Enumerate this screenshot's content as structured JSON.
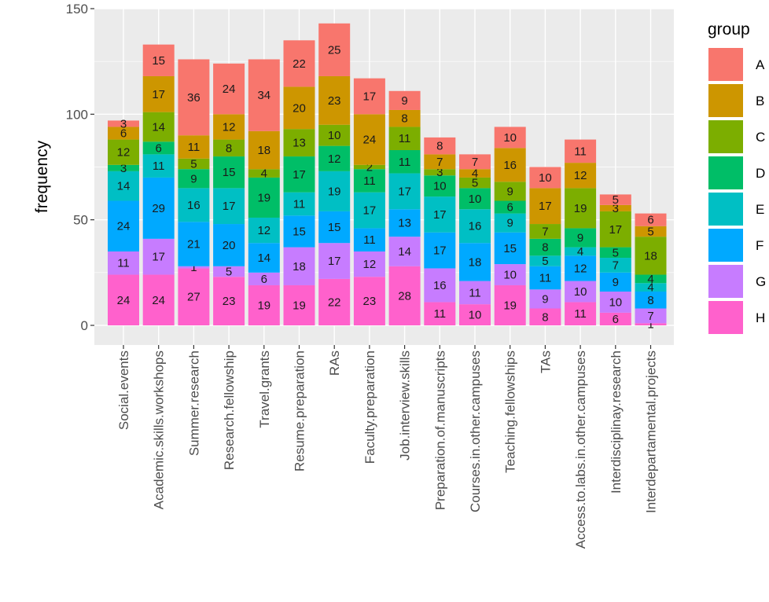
{
  "chart_data": {
    "type": "bar",
    "stacked": true,
    "title": "",
    "xlabel": "",
    "ylabel": "frequency",
    "ylim": [
      0,
      150
    ],
    "yticks": [
      0,
      50,
      100,
      150
    ],
    "grid": true,
    "legend_title": "group",
    "legend_position": "right",
    "categories": [
      "Social.events",
      "Academic.skills.workshops",
      "Summer.research",
      "Research.fellowship",
      "Travel.grants",
      "Resume.preparation",
      "RAs",
      "Faculty.preparation",
      "Job.interview.skills",
      "Preparation.of.manuscripts",
      "Courses.in.other.campuses",
      "Teaching.fellowships",
      "TAs",
      "Access.to.labs.in.other.campuses",
      "Interdisciplinay.research",
      "Interdepartamental.projects"
    ],
    "series": [
      {
        "name": "A",
        "color": "#F8766D",
        "values": [
          3,
          15,
          36,
          24,
          34,
          22,
          25,
          17,
          9,
          8,
          7,
          10,
          10,
          11,
          5,
          6
        ]
      },
      {
        "name": "B",
        "color": "#CD9600",
        "values": [
          6,
          17,
          11,
          12,
          18,
          20,
          23,
          24,
          8,
          7,
          4,
          16,
          17,
          12,
          3,
          5
        ]
      },
      {
        "name": "C",
        "color": "#7CAE00",
        "values": [
          12,
          14,
          5,
          8,
          4,
          13,
          10,
          2,
          11,
          3,
          5,
          9,
          7,
          19,
          17,
          18
        ]
      },
      {
        "name": "D",
        "color": "#00BE67",
        "values": [
          3,
          6,
          9,
          15,
          19,
          17,
          12,
          11,
          11,
          10,
          10,
          6,
          8,
          9,
          5,
          4
        ]
      },
      {
        "name": "E",
        "color": "#00BFC4",
        "values": [
          14,
          11,
          16,
          17,
          12,
          11,
          19,
          17,
          17,
          17,
          16,
          9,
          5,
          4,
          7,
          4
        ]
      },
      {
        "name": "F",
        "color": "#00A9FF",
        "values": [
          24,
          29,
          21,
          20,
          14,
          15,
          15,
          11,
          13,
          17,
          18,
          15,
          11,
          12,
          9,
          8
        ]
      },
      {
        "name": "G",
        "color": "#C77CFF",
        "values": [
          11,
          17,
          1,
          5,
          6,
          18,
          17,
          12,
          14,
          16,
          11,
          10,
          9,
          10,
          10,
          7
        ]
      },
      {
        "name": "H",
        "color": "#FF61CC",
        "values": [
          24,
          24,
          27,
          23,
          19,
          19,
          22,
          23,
          28,
          11,
          10,
          19,
          8,
          11,
          6,
          1
        ]
      }
    ]
  }
}
